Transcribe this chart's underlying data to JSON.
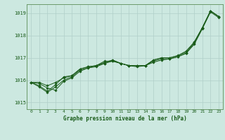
{
  "title": "Graphe pression niveau de la mer (hPa)",
  "background_color": "#cce8e0",
  "grid_color": "#b0cfc8",
  "line_color": "#1a5c1a",
  "spine_color": "#6a9a6a",
  "xlim": [
    -0.5,
    23.5
  ],
  "ylim": [
    1014.7,
    1019.4
  ],
  "yticks": [
    1015,
    1016,
    1017,
    1018,
    1019
  ],
  "xticks": [
    0,
    1,
    2,
    3,
    4,
    5,
    6,
    7,
    8,
    9,
    10,
    11,
    12,
    13,
    14,
    15,
    16,
    17,
    18,
    19,
    20,
    21,
    22,
    23
  ],
  "series": [
    [
      1015.9,
      1015.9,
      1015.75,
      1015.9,
      1016.1,
      1016.2,
      1016.5,
      1016.6,
      1016.65,
      1016.75,
      1016.9,
      1016.75,
      1016.65,
      1016.65,
      1016.65,
      1016.85,
      1016.95,
      1016.95,
      1017.05,
      1017.2,
      1017.65,
      1018.35,
      1019.1,
      1018.85
    ],
    [
      1015.9,
      1015.85,
      1015.65,
      1015.55,
      1015.95,
      1016.1,
      1016.4,
      1016.55,
      1016.6,
      1016.75,
      1016.85,
      1016.75,
      1016.65,
      1016.6,
      1016.65,
      1016.8,
      1016.9,
      1016.95,
      1017.05,
      1017.2,
      1017.6,
      1018.3,
      1019.05,
      1018.8
    ],
    [
      1015.9,
      1015.75,
      1015.5,
      1015.8,
      1016.15,
      1016.2,
      1016.5,
      1016.6,
      1016.65,
      1016.8,
      1016.9,
      1016.75,
      1016.65,
      1016.65,
      1016.65,
      1016.9,
      1017.0,
      1017.0,
      1017.1,
      1017.25,
      1017.7,
      1018.35,
      1019.1,
      1018.85
    ],
    [
      1015.9,
      1015.7,
      1015.45,
      1015.7,
      1016.0,
      1016.15,
      1016.45,
      1016.55,
      1016.65,
      1016.85,
      1016.85,
      1016.75,
      1016.65,
      1016.65,
      1016.65,
      1016.9,
      1017.0,
      1017.0,
      1017.1,
      1017.3,
      1017.7,
      1018.35,
      1019.1,
      1018.85
    ]
  ]
}
